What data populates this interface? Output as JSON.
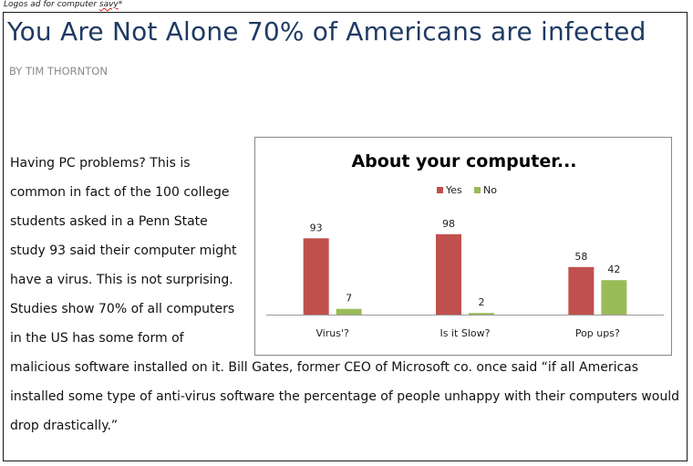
{
  "caption": {
    "text": "Logos ad for computer ",
    "misspelled": "savy",
    "suffix": "*"
  },
  "article": {
    "title": "You Are Not Alone 70% of Americans are infected",
    "byline": "By Tim Thornton",
    "body_lines": [
      "Having PC problems? This is",
      "common in fact of the 100 college",
      "students asked in a Penn State",
      "study 93 said their computer might",
      "have a virus. This is not surprising.",
      "Studies show 70% of all computers",
      "in the US has some form of",
      "malicious software installed on it. Bill Gates, former CEO of Microsoft co. once said “if all Americas",
      "installed some type of anti-virus software the percentage of people unhappy with their computers would",
      "drop drastically.”"
    ]
  },
  "chart_data": {
    "type": "bar",
    "title": "About your computer...",
    "categories": [
      "Virus'?",
      "Is it Slow?",
      "Pop ups?"
    ],
    "series": [
      {
        "name": "Yes",
        "values": [
          93,
          98,
          58
        ],
        "color": "#c0504d"
      },
      {
        "name": "No",
        "values": [
          7,
          2,
          42
        ],
        "color": "#9bbb59"
      }
    ],
    "ylim": [
      0,
      100
    ],
    "grid": false,
    "legend": "top-center",
    "xlabel": "",
    "ylabel": ""
  }
}
